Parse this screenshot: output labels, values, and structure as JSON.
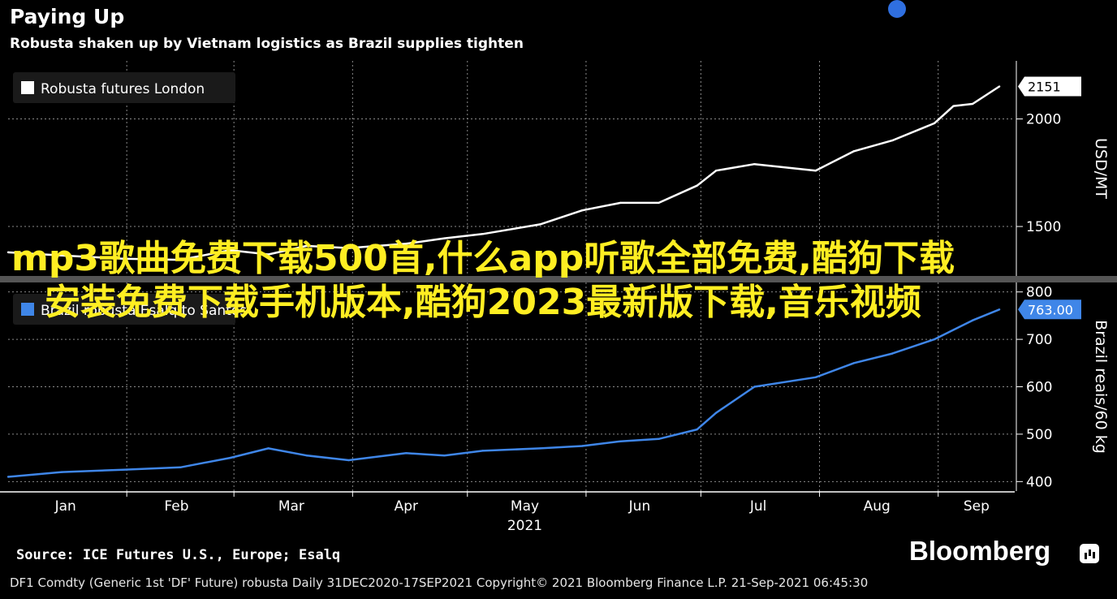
{
  "header": {
    "title": "Paying Up",
    "subtitle": "Robusta shaken up by Vietnam logistics as Brazil supplies tighten"
  },
  "chart_data": [
    {
      "type": "line",
      "legend": "top-left",
      "grid": true,
      "x": [
        "2021-01-01",
        "2021-01-15",
        "2021-01-31",
        "2021-02-15",
        "2021-02-28",
        "2021-03-10",
        "2021-03-20",
        "2021-03-31",
        "2021-04-15",
        "2021-04-25",
        "2021-05-05",
        "2021-05-20",
        "2021-05-31",
        "2021-06-10",
        "2021-06-20",
        "2021-06-30",
        "2021-07-05",
        "2021-07-15",
        "2021-07-31",
        "2021-08-10",
        "2021-08-20",
        "2021-08-31",
        "2021-09-05",
        "2021-09-10",
        "2021-09-17"
      ],
      "series": [
        {
          "name": "Robusta futures London",
          "color": "#ffffff",
          "values": [
            1380,
            1365,
            1350,
            1345,
            1390,
            1370,
            1410,
            1400,
            1420,
            1445,
            1465,
            1510,
            1575,
            1610,
            1610,
            1690,
            1760,
            1790,
            1760,
            1850,
            1900,
            1980,
            2060,
            2070,
            2151
          ]
        }
      ],
      "y_axis_label": "USD/MT",
      "yticks": [
        1500,
        2000
      ],
      "ylim": [
        1270,
        2270
      ],
      "last_value_label": "2151",
      "last_value": 2151
    },
    {
      "type": "line",
      "legend": "top-left",
      "grid": true,
      "x": [
        "2021-01-01",
        "2021-01-15",
        "2021-01-31",
        "2021-02-15",
        "2021-02-28",
        "2021-03-10",
        "2021-03-20",
        "2021-03-31",
        "2021-04-15",
        "2021-04-25",
        "2021-05-05",
        "2021-05-20",
        "2021-05-31",
        "2021-06-10",
        "2021-06-20",
        "2021-06-30",
        "2021-07-05",
        "2021-07-15",
        "2021-07-31",
        "2021-08-10",
        "2021-08-20",
        "2021-08-31",
        "2021-09-05",
        "2021-09-10",
        "2021-09-17"
      ],
      "series": [
        {
          "name": "Brazil robusta Esalq to Santos",
          "color": "#3f86e8",
          "values": [
            410,
            420,
            425,
            430,
            450,
            470,
            455,
            445,
            460,
            455,
            465,
            470,
            475,
            485,
            490,
            510,
            545,
            600,
            620,
            650,
            670,
            700,
            720,
            740,
            763
          ]
        }
      ],
      "y_axis_label": "Brazil reais/60 kg",
      "yticks": [
        400,
        500,
        600,
        700,
        800
      ],
      "ylim": [
        380,
        820
      ],
      "last_value_label": "763.00",
      "last_value": 763
    }
  ],
  "x_axis": {
    "months": [
      "Jan",
      "Feb",
      "Mar",
      "Apr",
      "May",
      "Jun",
      "Jul",
      "Aug",
      "Sep"
    ],
    "year": "2021"
  },
  "footer": {
    "source": "Source: ICE Futures U.S., Europe; Esalq",
    "brand": "Bloomberg",
    "terminal_line": "DF1 Comdty (Generic 1st 'DF' Future) robusta  Daily 31DEC2020-17SEP2021  Copyright© 2021 Bloomberg Finance L.P.  21-Sep-2021 06:45:30"
  },
  "overlay": {
    "watermark": "mp3歌曲免费下载500首,什么app听歌全部免费,酷狗下载安装免费下载手机版本,酷狗2023最新版下载,音乐视频"
  },
  "colors": {
    "background": "#000000",
    "robusta_line": "#ffffff",
    "brazil_line": "#3f86e8",
    "watermark": "#ffee22",
    "grid": "#8a8a8a"
  }
}
